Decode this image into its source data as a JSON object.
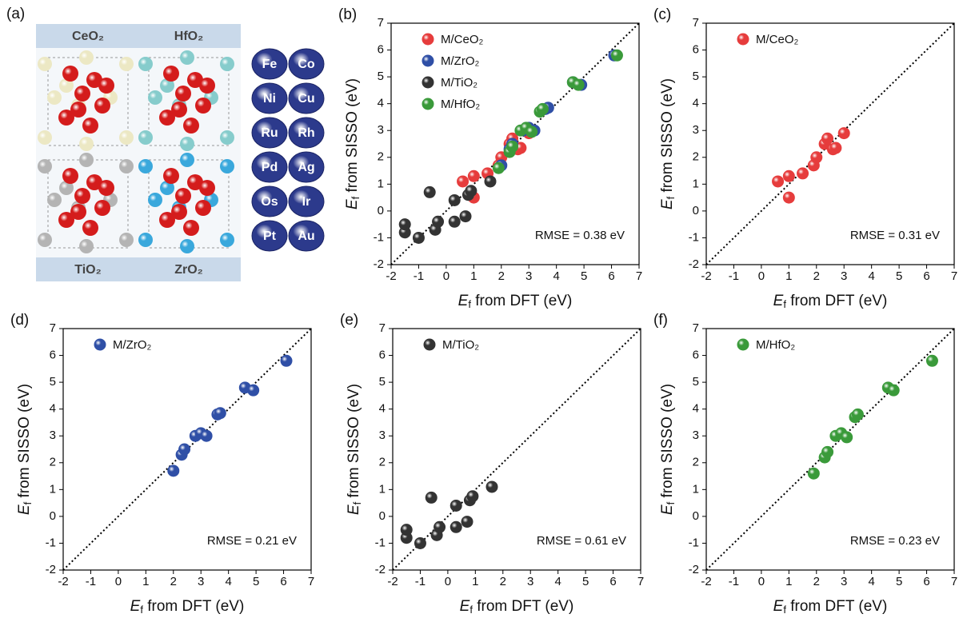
{
  "panel_a": {
    "label": "(a)",
    "structures": [
      "CeO₂",
      "HfO₂",
      "TiO₂",
      "ZrO₂"
    ],
    "metals": [
      "Fe",
      "Co",
      "Ni",
      "Cu",
      "Ru",
      "Rh",
      "Pd",
      "Ag",
      "Os",
      "Ir",
      "Pt",
      "Au"
    ]
  },
  "chart_data": [
    {
      "type": "scatter",
      "label": "(b)",
      "xlabel": "Ef from DFT (eV)",
      "ylabel": "Ef from SISSO (eV)",
      "annotation": "RMSE = 0.38 eV",
      "xlim": [
        -2,
        7
      ],
      "ylim": [
        -2,
        7
      ],
      "xticks": [
        -2,
        -1,
        0,
        1,
        2,
        3,
        4,
        5,
        6,
        7
      ],
      "yticks": [
        -2,
        -1,
        0,
        1,
        2,
        3,
        4,
        5,
        6,
        7
      ],
      "diagonal": true,
      "series": [
        {
          "name": "M/CeO₂",
          "color": "#e63c3c",
          "x": [
            0.6,
            1.0,
            1.0,
            1.5,
            1.9,
            2.0,
            2.3,
            2.4,
            2.6,
            2.7,
            3.0
          ],
          "values": [
            1.1,
            1.3,
            0.5,
            1.4,
            1.7,
            2.0,
            2.5,
            2.7,
            2.3,
            2.35,
            2.9
          ]
        },
        {
          "name": "M/ZrO₂",
          "color": "#2f4fa6",
          "x": [
            2.0,
            2.3,
            2.4,
            2.8,
            3.0,
            3.2,
            3.6,
            3.7,
            4.6,
            4.9,
            6.1
          ],
          "values": [
            1.7,
            2.3,
            2.5,
            3.0,
            3.1,
            3.0,
            3.8,
            3.85,
            4.8,
            4.7,
            5.8
          ]
        },
        {
          "name": "M/TiO₂",
          "color": "#333333",
          "x": [
            -1.5,
            -1.5,
            -1.0,
            -0.6,
            -0.4,
            -0.3,
            0.3,
            0.3,
            0.7,
            0.8,
            0.9,
            1.6
          ],
          "values": [
            -0.8,
            -0.5,
            -1.0,
            0.7,
            -0.7,
            -0.4,
            0.4,
            -0.4,
            -0.2,
            0.6,
            0.75,
            1.1
          ]
        },
        {
          "name": "M/HfO₂",
          "color": "#3a9a3a",
          "x": [
            1.9,
            2.3,
            2.4,
            2.7,
            2.9,
            3.1,
            3.4,
            3.5,
            4.6,
            4.8,
            6.2
          ],
          "values": [
            1.6,
            2.2,
            2.4,
            3.0,
            3.1,
            2.95,
            3.7,
            3.8,
            4.8,
            4.7,
            5.8
          ]
        }
      ]
    },
    {
      "type": "scatter",
      "label": "(c)",
      "xlabel": "Ef from DFT (eV)",
      "ylabel": "Ef from SISSO (eV)",
      "annotation": "RMSE = 0.31 eV",
      "xlim": [
        -2,
        7
      ],
      "ylim": [
        -2,
        7
      ],
      "xticks": [
        -2,
        -1,
        0,
        1,
        2,
        3,
        4,
        5,
        6,
        7
      ],
      "yticks": [
        -2,
        -1,
        0,
        1,
        2,
        3,
        4,
        5,
        6,
        7
      ],
      "diagonal": true,
      "series": [
        {
          "name": "M/CeO₂",
          "color": "#e63c3c",
          "x": [
            0.6,
            1.0,
            1.0,
            1.5,
            1.9,
            2.0,
            2.3,
            2.4,
            2.6,
            2.7,
            3.0
          ],
          "values": [
            1.1,
            1.3,
            0.5,
            1.4,
            1.7,
            2.0,
            2.5,
            2.7,
            2.3,
            2.35,
            2.9
          ]
        }
      ]
    },
    {
      "type": "scatter",
      "label": "(d)",
      "xlabel": "Ef from DFT (eV)",
      "ylabel": "Ef from SISSO (eV)",
      "annotation": "RMSE = 0.21 eV",
      "xlim": [
        -2,
        7
      ],
      "ylim": [
        -2,
        7
      ],
      "xticks": [
        -2,
        -1,
        0,
        1,
        2,
        3,
        4,
        5,
        6,
        7
      ],
      "yticks": [
        -2,
        -1,
        0,
        1,
        2,
        3,
        4,
        5,
        6,
        7
      ],
      "diagonal": true,
      "series": [
        {
          "name": "M/ZrO₂",
          "color": "#2f4fa6",
          "x": [
            2.0,
            2.3,
            2.4,
            2.8,
            3.0,
            3.2,
            3.6,
            3.7,
            4.6,
            4.9,
            6.1
          ],
          "values": [
            1.7,
            2.3,
            2.5,
            3.0,
            3.1,
            3.0,
            3.8,
            3.85,
            4.8,
            4.7,
            5.8
          ]
        }
      ]
    },
    {
      "type": "scatter",
      "label": "(e)",
      "xlabel": "Ef from DFT (eV)",
      "ylabel": "Ef from SISSO (eV)",
      "annotation": "RMSE = 0.61 eV",
      "xlim": [
        -2,
        7
      ],
      "ylim": [
        -2,
        7
      ],
      "xticks": [
        -2,
        -1,
        0,
        1,
        2,
        3,
        4,
        5,
        6,
        7
      ],
      "yticks": [
        -2,
        -1,
        0,
        1,
        2,
        3,
        4,
        5,
        6,
        7
      ],
      "diagonal": true,
      "series": [
        {
          "name": "M/TiO₂",
          "color": "#333333",
          "x": [
            -1.5,
            -1.5,
            -1.0,
            -0.6,
            -0.4,
            -0.3,
            0.3,
            0.3,
            0.7,
            0.8,
            0.9,
            1.6
          ],
          "values": [
            -0.8,
            -0.5,
            -1.0,
            0.7,
            -0.7,
            -0.4,
            0.4,
            -0.4,
            -0.2,
            0.6,
            0.75,
            1.1
          ]
        }
      ]
    },
    {
      "type": "scatter",
      "label": "(f)",
      "xlabel": "Ef from DFT (eV)",
      "ylabel": "Ef from SISSO (eV)",
      "annotation": "RMSE = 0.23 eV",
      "xlim": [
        -2,
        7
      ],
      "ylim": [
        -2,
        7
      ],
      "xticks": [
        -2,
        -1,
        0,
        1,
        2,
        3,
        4,
        5,
        6,
        7
      ],
      "yticks": [
        -2,
        -1,
        0,
        1,
        2,
        3,
        4,
        5,
        6,
        7
      ],
      "diagonal": true,
      "series": [
        {
          "name": "M/HfO₂",
          "color": "#3a9a3a",
          "x": [
            1.9,
            2.3,
            2.4,
            2.7,
            2.9,
            3.1,
            3.4,
            3.5,
            4.6,
            4.8,
            6.2
          ],
          "values": [
            1.6,
            2.2,
            2.4,
            3.0,
            3.1,
            2.95,
            3.7,
            3.8,
            4.8,
            4.7,
            5.8
          ]
        }
      ]
    }
  ]
}
